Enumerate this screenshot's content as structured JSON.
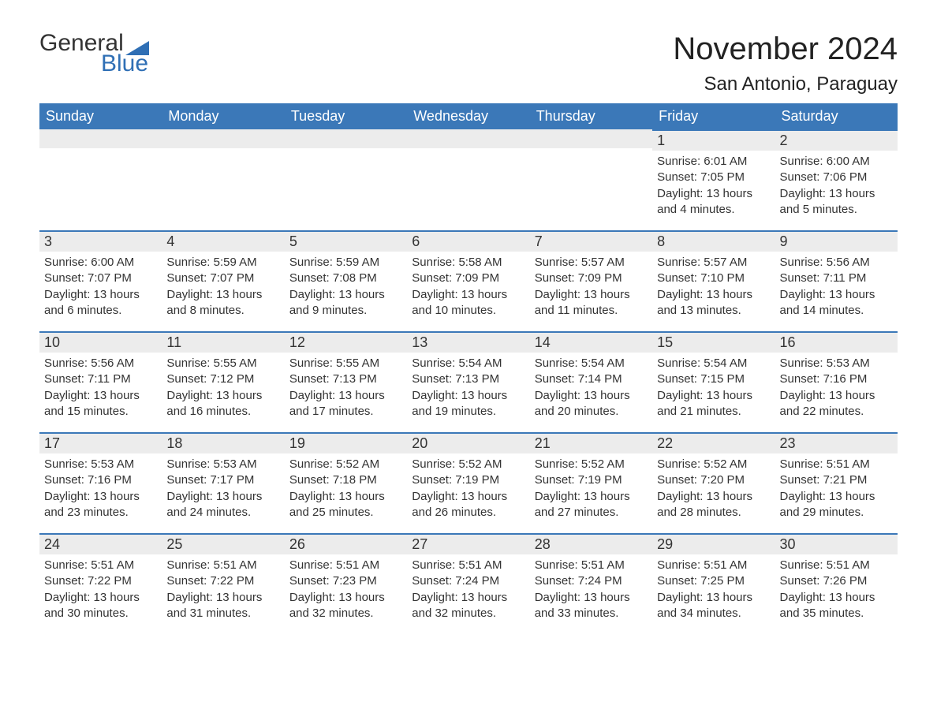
{
  "brand": {
    "text1": "General",
    "text2": "Blue",
    "accent": "#2f6fb5"
  },
  "title": "November 2024",
  "location": "San Antonio, Paraguay",
  "style": {
    "header_bg": "#3b78b8",
    "header_fg": "#ffffff",
    "row_accent": "#3b78b8",
    "daynum_bg": "#ececec",
    "page_bg": "#ffffff",
    "text_color": "#333333",
    "title_fontsize": 40,
    "location_fontsize": 24,
    "dow_fontsize": 18,
    "body_fontsize": 15
  },
  "dow": [
    "Sunday",
    "Monday",
    "Tuesday",
    "Wednesday",
    "Thursday",
    "Friday",
    "Saturday"
  ],
  "weeks": [
    [
      null,
      null,
      null,
      null,
      null,
      {
        "n": 1,
        "sr": "6:01 AM",
        "ss": "7:05 PM",
        "dl": "13 hours and 4 minutes."
      },
      {
        "n": 2,
        "sr": "6:00 AM",
        "ss": "7:06 PM",
        "dl": "13 hours and 5 minutes."
      }
    ],
    [
      {
        "n": 3,
        "sr": "6:00 AM",
        "ss": "7:07 PM",
        "dl": "13 hours and 6 minutes."
      },
      {
        "n": 4,
        "sr": "5:59 AM",
        "ss": "7:07 PM",
        "dl": "13 hours and 8 minutes."
      },
      {
        "n": 5,
        "sr": "5:59 AM",
        "ss": "7:08 PM",
        "dl": "13 hours and 9 minutes."
      },
      {
        "n": 6,
        "sr": "5:58 AM",
        "ss": "7:09 PM",
        "dl": "13 hours and 10 minutes."
      },
      {
        "n": 7,
        "sr": "5:57 AM",
        "ss": "7:09 PM",
        "dl": "13 hours and 11 minutes."
      },
      {
        "n": 8,
        "sr": "5:57 AM",
        "ss": "7:10 PM",
        "dl": "13 hours and 13 minutes."
      },
      {
        "n": 9,
        "sr": "5:56 AM",
        "ss": "7:11 PM",
        "dl": "13 hours and 14 minutes."
      }
    ],
    [
      {
        "n": 10,
        "sr": "5:56 AM",
        "ss": "7:11 PM",
        "dl": "13 hours and 15 minutes."
      },
      {
        "n": 11,
        "sr": "5:55 AM",
        "ss": "7:12 PM",
        "dl": "13 hours and 16 minutes."
      },
      {
        "n": 12,
        "sr": "5:55 AM",
        "ss": "7:13 PM",
        "dl": "13 hours and 17 minutes."
      },
      {
        "n": 13,
        "sr": "5:54 AM",
        "ss": "7:13 PM",
        "dl": "13 hours and 19 minutes."
      },
      {
        "n": 14,
        "sr": "5:54 AM",
        "ss": "7:14 PM",
        "dl": "13 hours and 20 minutes."
      },
      {
        "n": 15,
        "sr": "5:54 AM",
        "ss": "7:15 PM",
        "dl": "13 hours and 21 minutes."
      },
      {
        "n": 16,
        "sr": "5:53 AM",
        "ss": "7:16 PM",
        "dl": "13 hours and 22 minutes."
      }
    ],
    [
      {
        "n": 17,
        "sr": "5:53 AM",
        "ss": "7:16 PM",
        "dl": "13 hours and 23 minutes."
      },
      {
        "n": 18,
        "sr": "5:53 AM",
        "ss": "7:17 PM",
        "dl": "13 hours and 24 minutes."
      },
      {
        "n": 19,
        "sr": "5:52 AM",
        "ss": "7:18 PM",
        "dl": "13 hours and 25 minutes."
      },
      {
        "n": 20,
        "sr": "5:52 AM",
        "ss": "7:19 PM",
        "dl": "13 hours and 26 minutes."
      },
      {
        "n": 21,
        "sr": "5:52 AM",
        "ss": "7:19 PM",
        "dl": "13 hours and 27 minutes."
      },
      {
        "n": 22,
        "sr": "5:52 AM",
        "ss": "7:20 PM",
        "dl": "13 hours and 28 minutes."
      },
      {
        "n": 23,
        "sr": "5:51 AM",
        "ss": "7:21 PM",
        "dl": "13 hours and 29 minutes."
      }
    ],
    [
      {
        "n": 24,
        "sr": "5:51 AM",
        "ss": "7:22 PM",
        "dl": "13 hours and 30 minutes."
      },
      {
        "n": 25,
        "sr": "5:51 AM",
        "ss": "7:22 PM",
        "dl": "13 hours and 31 minutes."
      },
      {
        "n": 26,
        "sr": "5:51 AM",
        "ss": "7:23 PM",
        "dl": "13 hours and 32 minutes."
      },
      {
        "n": 27,
        "sr": "5:51 AM",
        "ss": "7:24 PM",
        "dl": "13 hours and 32 minutes."
      },
      {
        "n": 28,
        "sr": "5:51 AM",
        "ss": "7:24 PM",
        "dl": "13 hours and 33 minutes."
      },
      {
        "n": 29,
        "sr": "5:51 AM",
        "ss": "7:25 PM",
        "dl": "13 hours and 34 minutes."
      },
      {
        "n": 30,
        "sr": "5:51 AM",
        "ss": "7:26 PM",
        "dl": "13 hours and 35 minutes."
      }
    ]
  ],
  "labels": {
    "sunrise": "Sunrise: ",
    "sunset": "Sunset: ",
    "daylight": "Daylight: "
  }
}
